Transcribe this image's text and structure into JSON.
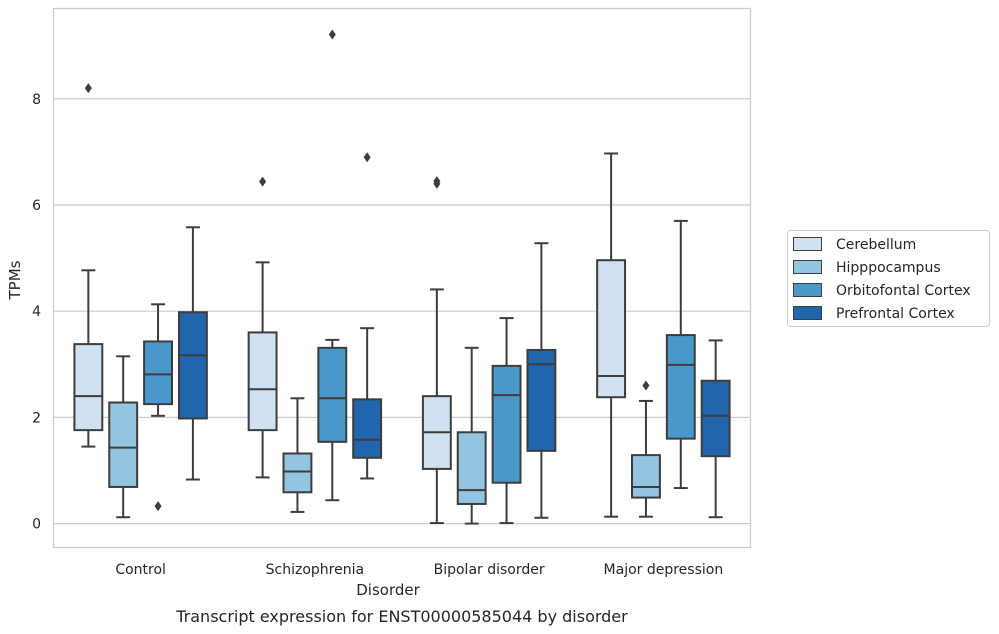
{
  "chart_data": {
    "type": "box",
    "xlabel": "Disorder",
    "ylabel": "TPMs",
    "caption": "Transcript expression for ENST00000585044 by disorder",
    "ylim": [
      -0.45,
      9.7
    ],
    "yticks": [
      0,
      2,
      4,
      6,
      8
    ],
    "grid": true,
    "legend_position": "right",
    "categories": [
      "Control",
      "Schizophrenia",
      "Bipolar disorder",
      "Major depression"
    ],
    "series": [
      {
        "name": "Cerebellum",
        "color": "#d0e1f2",
        "boxes": [
          {
            "whisker_low": 1.45,
            "q1": 1.76,
            "median": 2.4,
            "q3": 3.38,
            "whisker_high": 4.77,
            "outliers": [
              8.2
            ]
          },
          {
            "whisker_low": 0.87,
            "q1": 1.76,
            "median": 2.53,
            "q3": 3.6,
            "whisker_high": 4.92,
            "outliers": [
              6.44
            ]
          },
          {
            "whisker_low": 0.01,
            "q1": 1.03,
            "median": 1.72,
            "q3": 2.4,
            "whisker_high": 4.41,
            "outliers": [
              6.4,
              6.45
            ]
          },
          {
            "whisker_low": 0.13,
            "q1": 2.38,
            "median": 2.78,
            "q3": 4.96,
            "whisker_high": 6.97,
            "outliers": []
          }
        ]
      },
      {
        "name": "Hipppocampus",
        "color": "#94c4df",
        "boxes": [
          {
            "whisker_low": 0.12,
            "q1": 0.69,
            "median": 1.43,
            "q3": 2.28,
            "whisker_high": 3.15,
            "outliers": []
          },
          {
            "whisker_low": 0.22,
            "q1": 0.59,
            "median": 0.98,
            "q3": 1.32,
            "whisker_high": 2.36,
            "outliers": []
          },
          {
            "whisker_low": 0.0,
            "q1": 0.37,
            "median": 0.63,
            "q3": 1.72,
            "whisker_high": 3.31,
            "outliers": []
          },
          {
            "whisker_low": 0.13,
            "q1": 0.49,
            "median": 0.69,
            "q3": 1.29,
            "whisker_high": 2.31,
            "outliers": [
              2.6
            ]
          }
        ]
      },
      {
        "name": "Orbitofontal Cortex",
        "color": "#4a98c9",
        "boxes": [
          {
            "whisker_low": 2.03,
            "q1": 2.25,
            "median": 2.81,
            "q3": 3.43,
            "whisker_high": 4.13,
            "outliers": [
              0.33
            ]
          },
          {
            "whisker_low": 0.44,
            "q1": 1.54,
            "median": 2.36,
            "q3": 3.31,
            "whisker_high": 3.46,
            "outliers": [
              9.21
            ]
          },
          {
            "whisker_low": 0.01,
            "q1": 0.77,
            "median": 2.42,
            "q3": 2.97,
            "whisker_high": 3.87,
            "outliers": []
          },
          {
            "whisker_low": 0.67,
            "q1": 1.6,
            "median": 2.99,
            "q3": 3.55,
            "whisker_high": 5.7,
            "outliers": []
          }
        ]
      },
      {
        "name": "Prefrontal Cortex",
        "color": "#2166ac",
        "boxes": [
          {
            "whisker_low": 0.83,
            "q1": 1.98,
            "median": 3.17,
            "q3": 3.98,
            "whisker_high": 5.58,
            "outliers": []
          },
          {
            "whisker_low": 0.85,
            "q1": 1.24,
            "median": 1.58,
            "q3": 2.34,
            "whisker_high": 3.68,
            "outliers": [
              6.9
            ]
          },
          {
            "whisker_low": 0.11,
            "q1": 1.37,
            "median": 3.0,
            "q3": 3.27,
            "whisker_high": 5.28,
            "outliers": []
          },
          {
            "whisker_low": 0.12,
            "q1": 1.27,
            "median": 2.03,
            "q3": 2.69,
            "whisker_high": 3.45,
            "outliers": []
          }
        ]
      }
    ]
  }
}
